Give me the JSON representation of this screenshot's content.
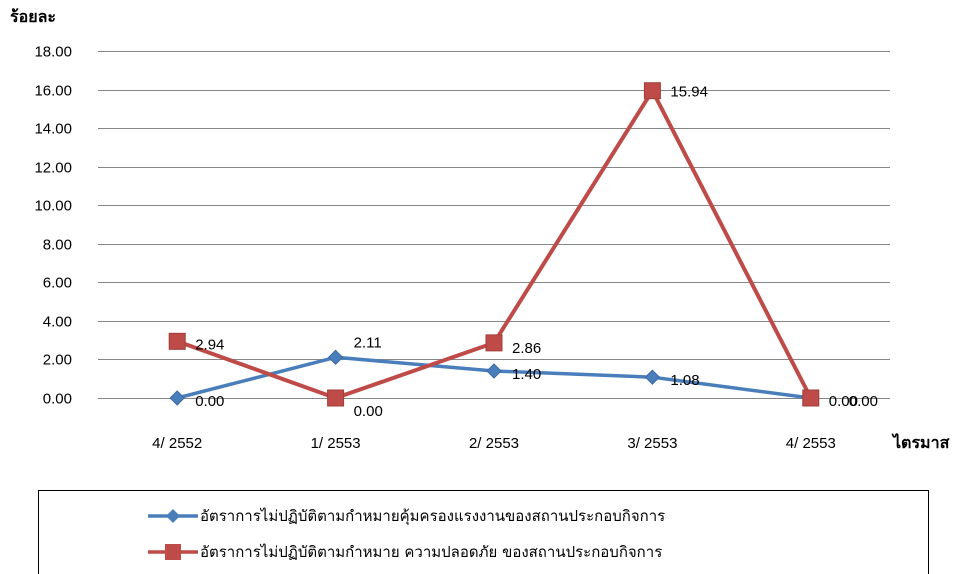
{
  "chart_data": {
    "type": "line",
    "ylabel": "ร้อยละ",
    "xlabel": "ไตรมาส",
    "categories": [
      "4/ 2552",
      "1/ 2553",
      "2/ 2553",
      "3/ 2553",
      "4/ 2553"
    ],
    "ylim": [
      0,
      18
    ],
    "yticks": [
      "0.00",
      "2.00",
      "4.00",
      "6.00",
      "8.00",
      "10.00",
      "12.00",
      "14.00",
      "16.00",
      "18.00"
    ],
    "grid": true,
    "legend_position": "bottom",
    "series": [
      {
        "name": "อัตราการไม่ปฏิบัติตามกำหมายคุ้มครองแรงงานของสถานประกอบกิจการ",
        "values": [
          0.0,
          2.11,
          1.4,
          1.08,
          0.0
        ],
        "labels": [
          "0.00",
          "2.11",
          "1.40",
          "1.08",
          "0.00"
        ],
        "color": "#4a7ebb",
        "marker": "diamond"
      },
      {
        "name": "อัตราการไม่ปฏิบัติตามกำหมาย ความปลอดภัย ของสถานประกอบกิจการ",
        "values": [
          2.94,
          0.0,
          2.86,
          15.94,
          0.0
        ],
        "labels": [
          "2.94",
          "0.00",
          "2.86",
          "15.94",
          "0.00"
        ],
        "color": "#be4b48",
        "marker": "square"
      }
    ]
  }
}
